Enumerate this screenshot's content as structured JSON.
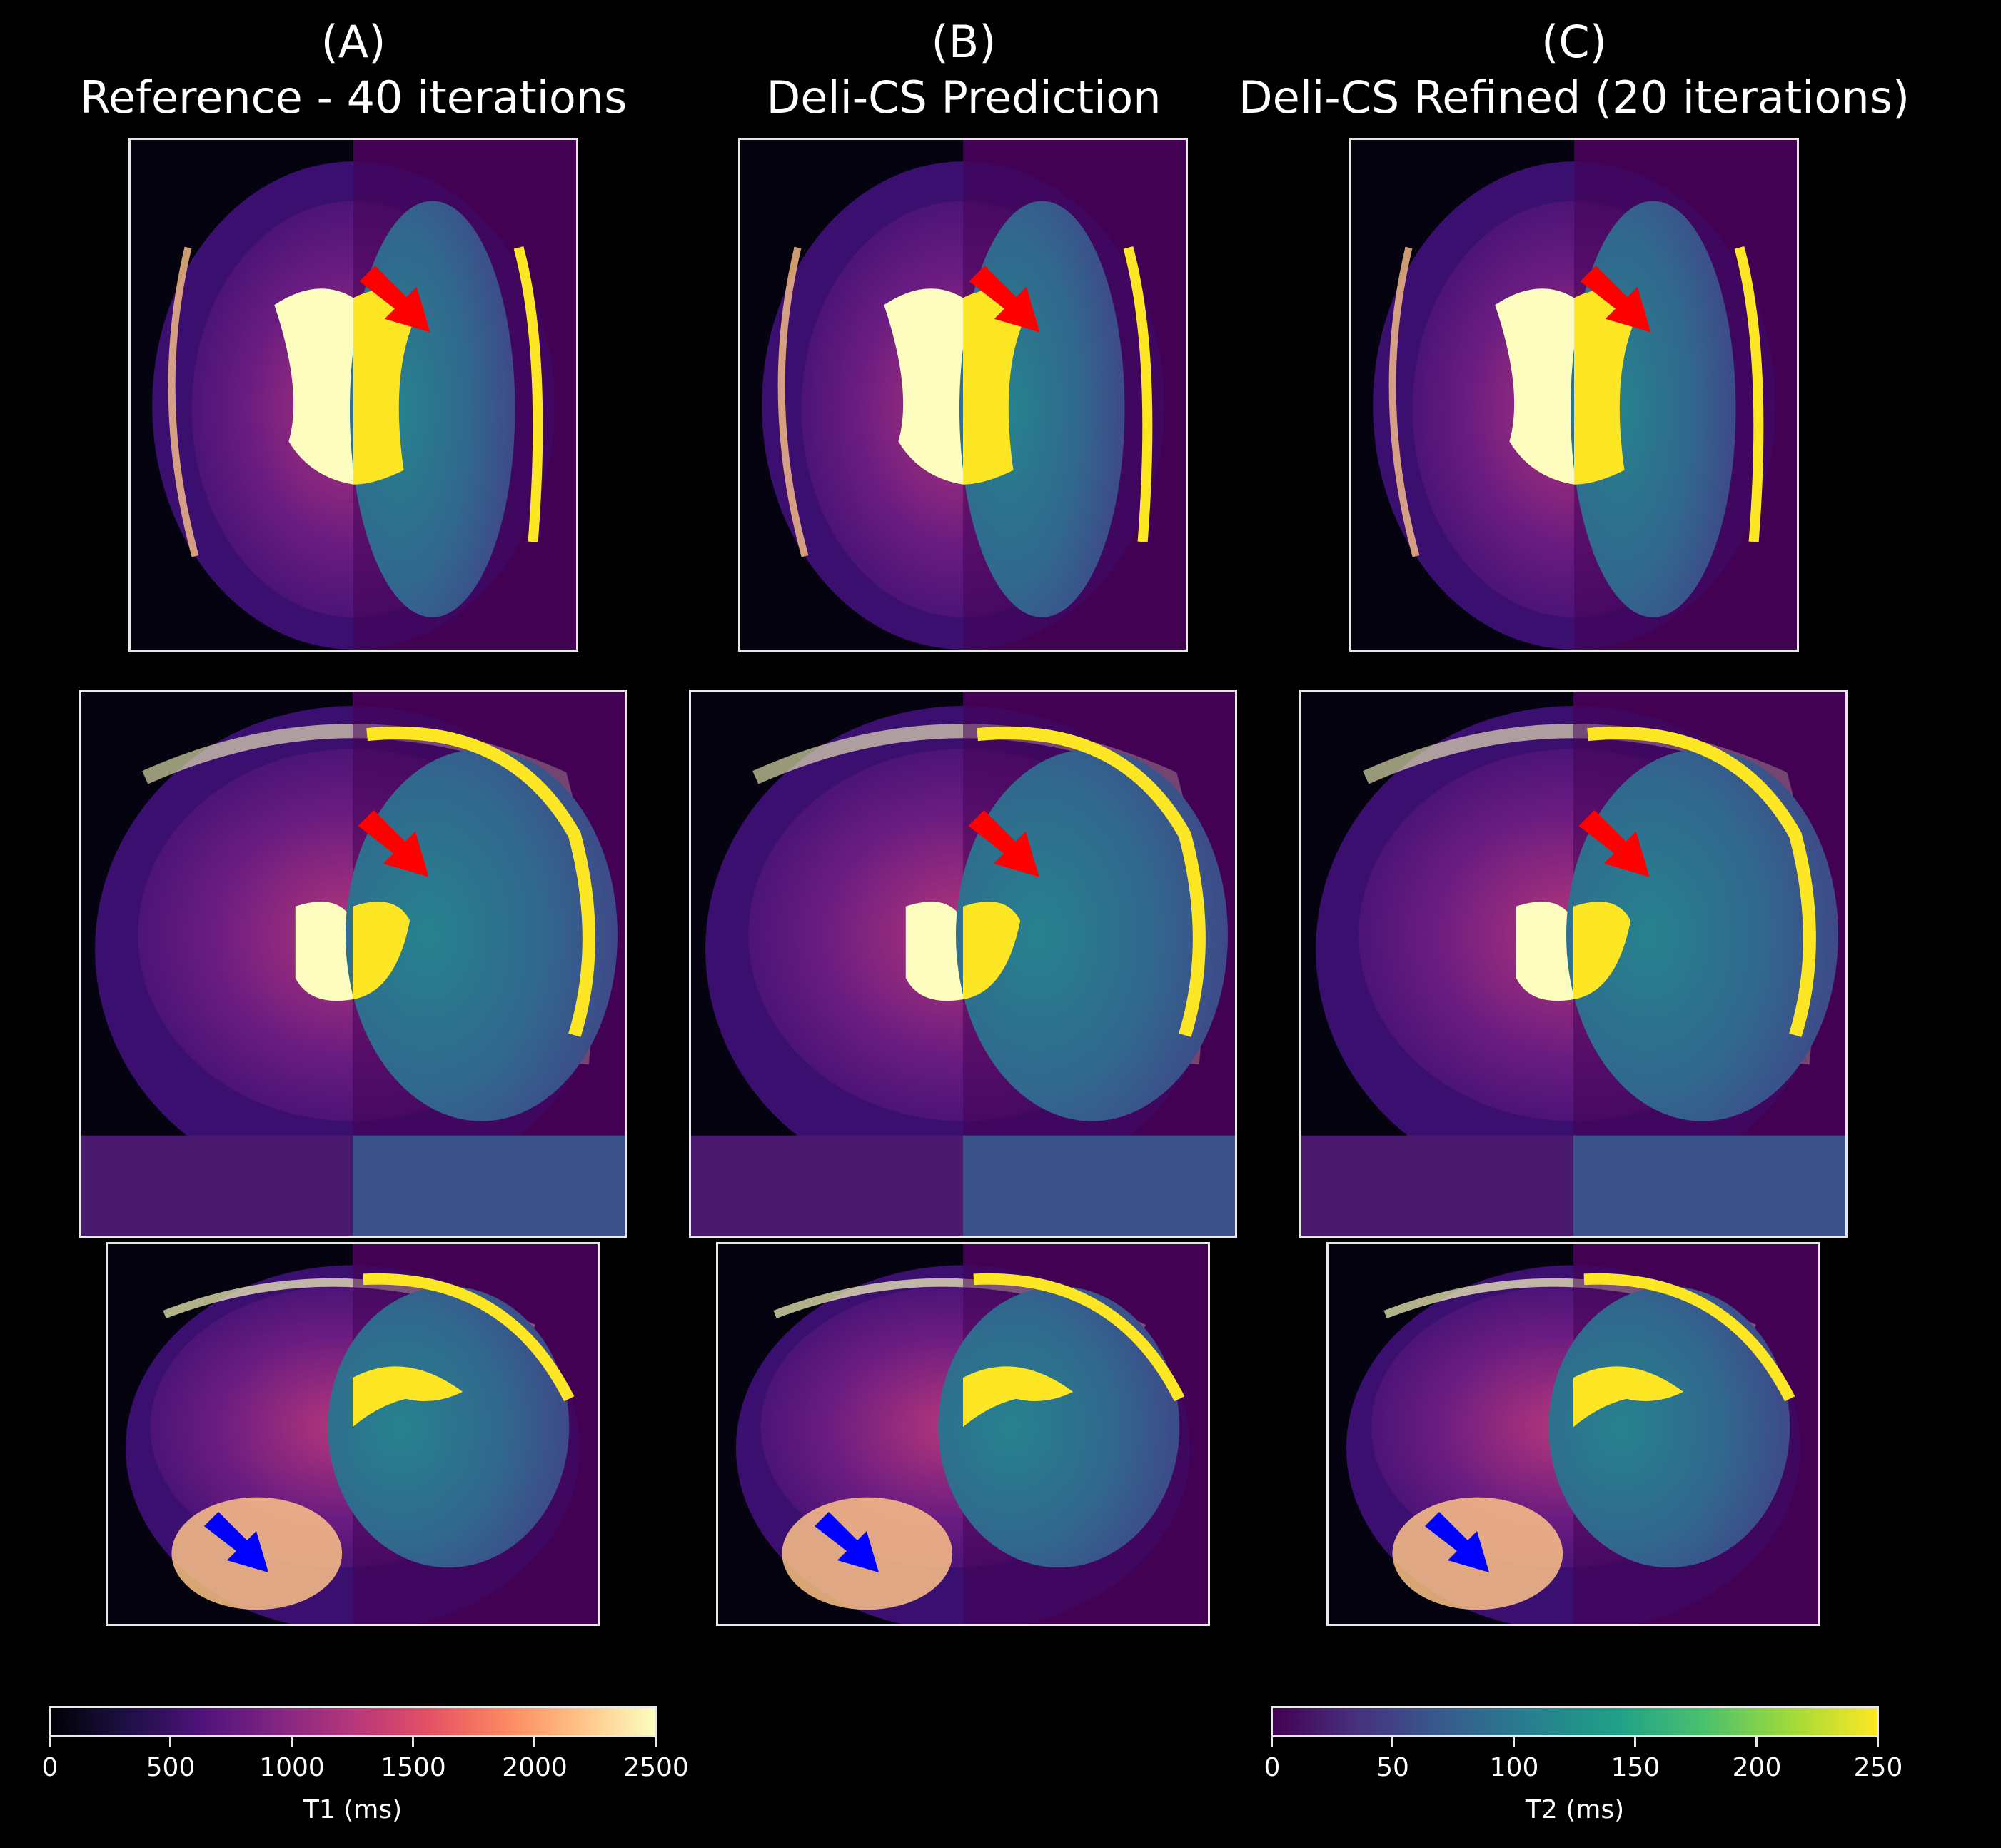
{
  "columns": [
    {
      "letter": "(A)",
      "title": "Reference - 40 iterations"
    },
    {
      "letter": "(B)",
      "title": "Deli-CS Prediction"
    },
    {
      "letter": "(C)",
      "title": "Deli-CS Refined (20 iterations)"
    }
  ],
  "rows": [
    {
      "view": "axial",
      "arrow": "red"
    },
    {
      "view": "coronal",
      "arrow": "red"
    },
    {
      "view": "sagittal",
      "arrow": "blue"
    }
  ],
  "colorbars": {
    "t1": {
      "label": "T1 (ms)",
      "ticks": [
        "0",
        "500",
        "1000",
        "1500",
        "2000",
        "2500"
      ],
      "colormap": "magma"
    },
    "t2": {
      "label": "T2 (ms)",
      "ticks": [
        "0",
        "50",
        "100",
        "150",
        "200",
        "250"
      ],
      "colormap": "viridis"
    }
  },
  "colors": {
    "background": "#000000",
    "arrow_red": "#ff0000",
    "arrow_blue": "#0000ff"
  }
}
